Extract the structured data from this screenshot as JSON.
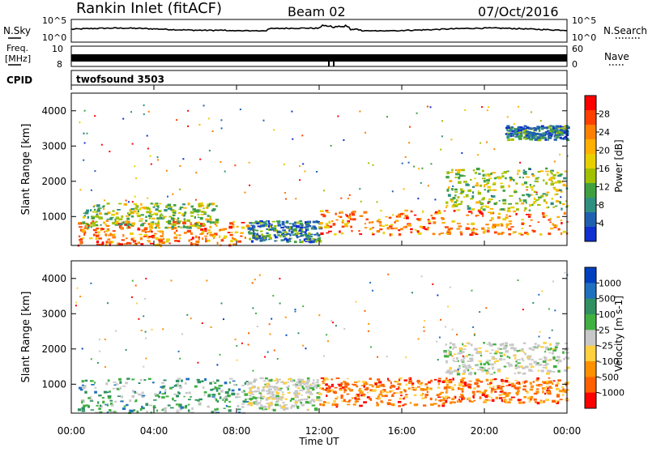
{
  "header": {
    "station": "Rankin Inlet (fitACF)",
    "beam": "Beam 02",
    "date": "07/Oct/2016"
  },
  "top_panels": {
    "nsky_label": "N.Sky",
    "nsky_ticks": [
      "10^5",
      "10^0"
    ],
    "nsearch_label": "N.Search",
    "nsearch_ticks": [
      "10^5",
      "10^0"
    ],
    "freq_label_1": "Freq.",
    "freq_label_2": "[MHz]",
    "freq_ticks": [
      "10",
      "8"
    ],
    "nave_label": "Nave",
    "nave_ticks": [
      "60",
      "0"
    ],
    "cpid_label": "CPID",
    "cpid_value": "twofsound 3503"
  },
  "chart_data": [
    {
      "type": "heatmap",
      "name": "power-panel",
      "ylabel": "Slant Range [km]",
      "yticks": [
        "4000",
        "3000",
        "2000",
        "1000"
      ],
      "ylim": [
        180,
        4500
      ],
      "xlim": [
        0,
        24
      ],
      "colorbar_label": "Power [dB]",
      "colorbar_ticks": [
        "28",
        "24",
        "20",
        "16",
        "12",
        "8",
        "4"
      ],
      "colorbar_colors": [
        "#ff0000",
        "#ff4000",
        "#ff8000",
        "#ffb000",
        "#e8d000",
        "#a0c000",
        "#40a040",
        "#309080",
        "#2060b0",
        "#1030d0"
      ],
      "regions": [
        {
          "t": [
            0.3,
            8.5
          ],
          "r": [
            200,
            900
          ],
          "level": "high"
        },
        {
          "t": [
            0.5,
            7.0
          ],
          "r": [
            700,
            1400
          ],
          "level": "mid"
        },
        {
          "t": [
            8.5,
            12.0
          ],
          "r": [
            300,
            900
          ],
          "level": "low"
        },
        {
          "t": [
            12.0,
            24.0
          ],
          "r": [
            500,
            1200
          ],
          "level": "high"
        },
        {
          "t": [
            18.0,
            24.0
          ],
          "r": [
            1200,
            2400
          ],
          "level": "mid"
        },
        {
          "t": [
            21.0,
            24.0
          ],
          "r": [
            3200,
            3600
          ],
          "level": "low"
        }
      ]
    },
    {
      "type": "heatmap",
      "name": "velocity-panel",
      "ylabel": "Slant Range [km]",
      "yticks": [
        "4000",
        "3000",
        "2000",
        "1000"
      ],
      "ylim": [
        180,
        4500
      ],
      "xlim": [
        0,
        24
      ],
      "colorbar_label": "Velocity [m s-1]",
      "colorbar_ticks": [
        "1000",
        "500",
        "100",
        "25",
        "-25",
        "-100",
        "-500",
        "-1000"
      ],
      "colorbar_colors": [
        "#0040c0",
        "#2070c0",
        "#309060",
        "#40b040",
        "#c8c8c8",
        "#ffd040",
        "#ff9000",
        "#ff6000",
        "#ff0000"
      ],
      "regions": [
        {
          "t": [
            0.3,
            8.5
          ],
          "r": [
            200,
            1200
          ],
          "level": "positive"
        },
        {
          "t": [
            8.5,
            12.0
          ],
          "r": [
            300,
            1200
          ],
          "level": "near-zero"
        },
        {
          "t": [
            12.0,
            18.0
          ],
          "r": [
            400,
            1200
          ],
          "level": "negative"
        },
        {
          "t": [
            18.0,
            24.0
          ],
          "r": [
            500,
            1200
          ],
          "level": "negative"
        },
        {
          "t": [
            18.0,
            24.0
          ],
          "r": [
            1300,
            2200
          ],
          "level": "near-zero"
        }
      ]
    }
  ],
  "xaxis": {
    "label": "Time UT",
    "ticks": [
      "00:00",
      "04:00",
      "08:00",
      "12:00",
      "16:00",
      "20:00",
      "00:00"
    ]
  }
}
